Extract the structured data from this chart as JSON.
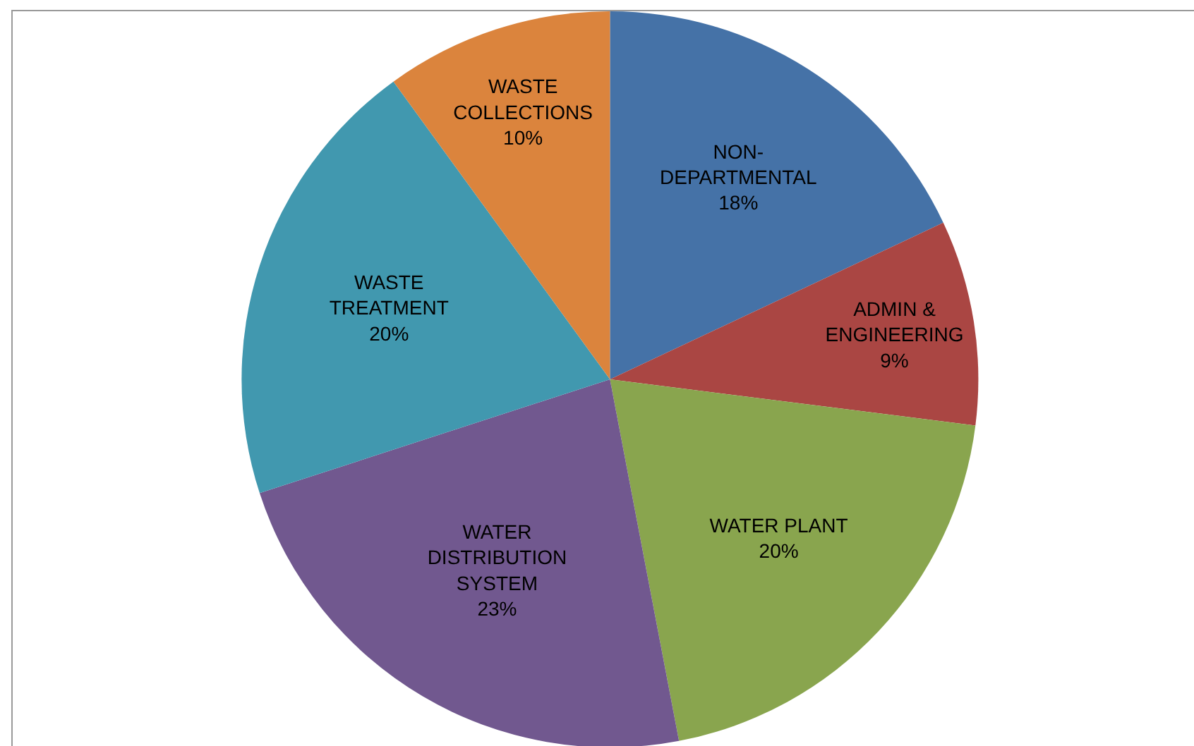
{
  "chart_data": {
    "type": "pie",
    "categories": [
      "NON-DEPARTMENTAL",
      "ADMIN & ENGINEERING",
      "WATER PLANT",
      "WATER DISTRIBUTION SYSTEM",
      "WASTE TREATMENT",
      "WASTE COLLECTIONS"
    ],
    "values": [
      18,
      9,
      20,
      23,
      20,
      10
    ],
    "value_labels": [
      "18%",
      "9%",
      "20%",
      "23%",
      "20%",
      "10%"
    ],
    "colors": [
      "#4572a7",
      "#aa4643",
      "#89a54e",
      "#71588f",
      "#4198af",
      "#db843d"
    ],
    "legend": false
  }
}
